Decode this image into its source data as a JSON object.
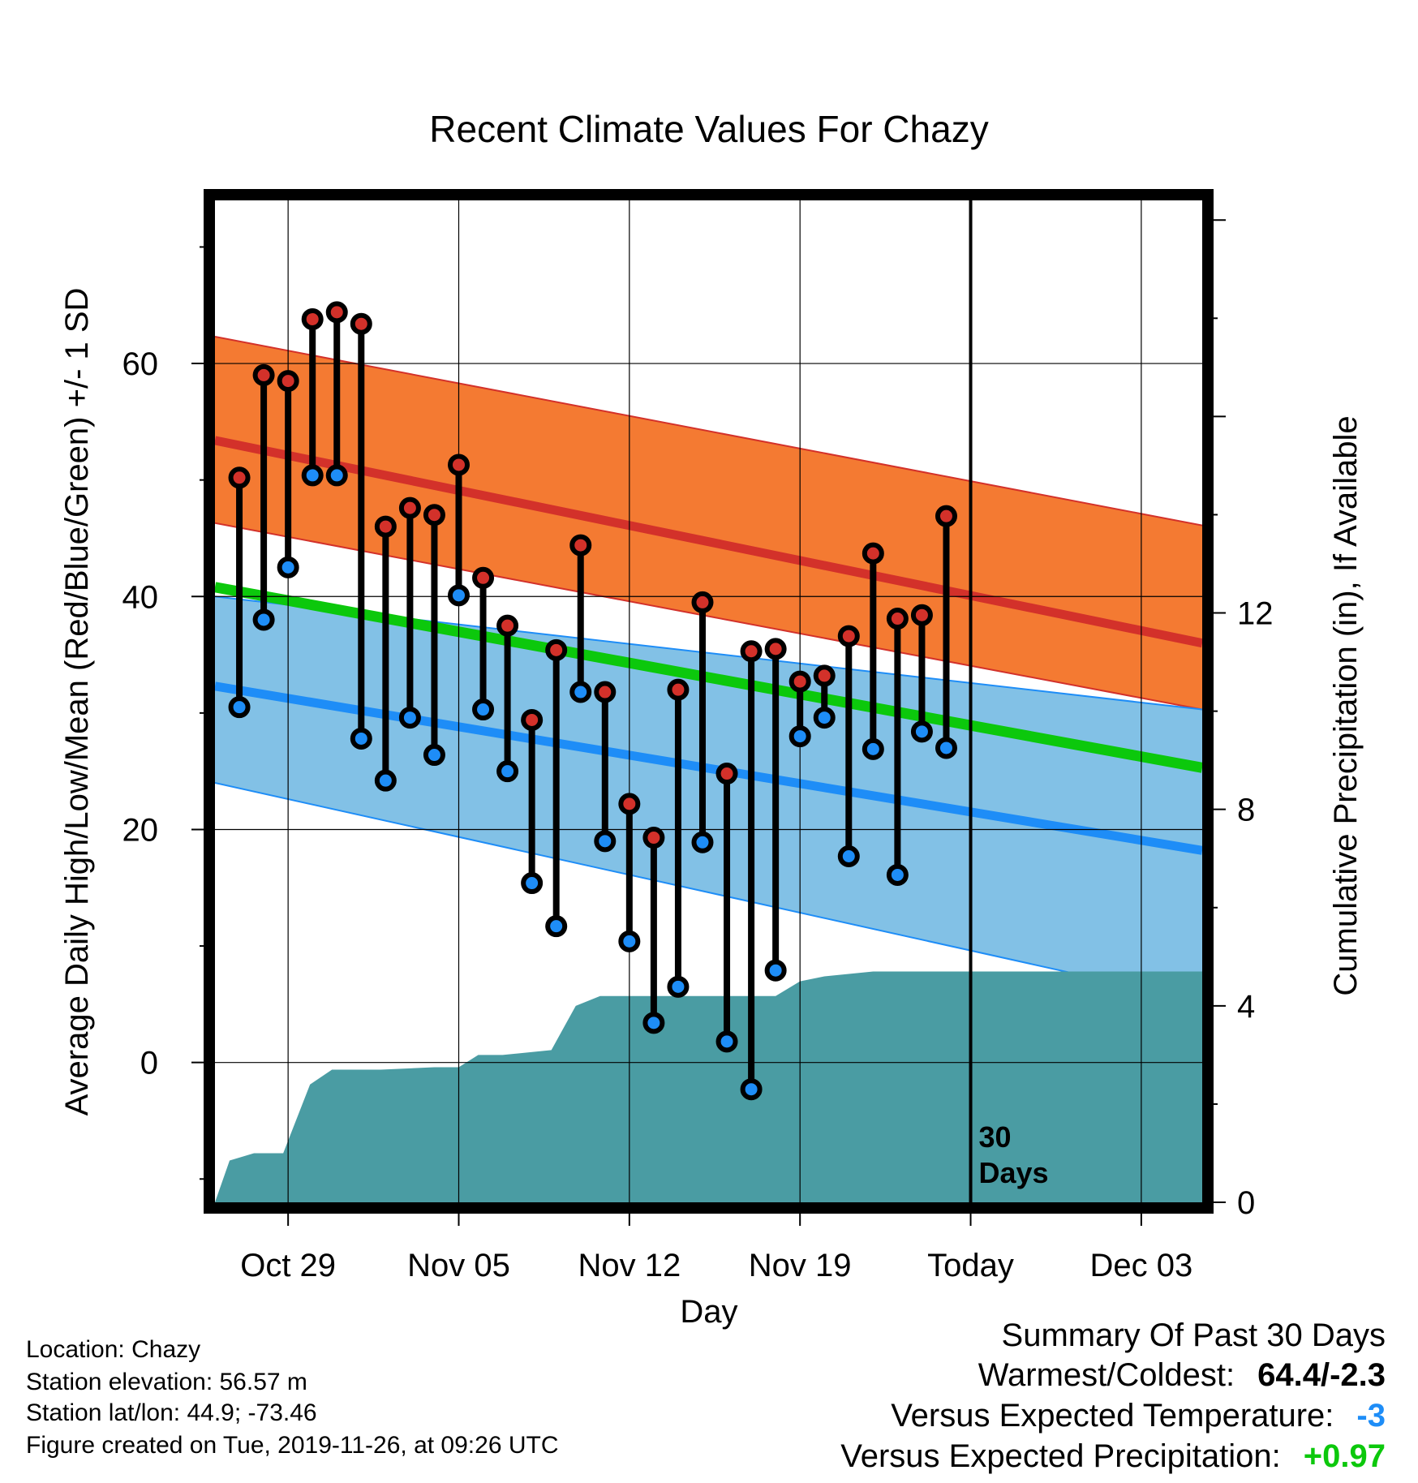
{
  "chart_data": {
    "type": "line",
    "title": "Recent Climate Values For Chazy",
    "xlabel": "Day",
    "ylabel": "Average Daily High/Low/Mean (Red/Blue/Green) +/- 1 SD",
    "y2label": "Cumulative Precipitation (in), If Available",
    "x_tick_labels": [
      "Oct 29",
      "Nov 05",
      "Nov 12",
      "Nov 19",
      "Today",
      "Dec 03"
    ],
    "x_tick_days": [
      3,
      10,
      17,
      24,
      31,
      38
    ],
    "x_range_days": [
      0,
      40.5
    ],
    "ylim": [
      -12,
      74
    ],
    "y_ticks": [
      0,
      20,
      40,
      60
    ],
    "y2lim": [
      0,
      20.4
    ],
    "y2_ticks": [
      0,
      4,
      8,
      12
    ],
    "grid": true,
    "today_day": 31,
    "today_annotation": "30\nDays",
    "daily_obs": {
      "days": [
        1,
        2,
        3,
        4,
        5,
        6,
        7,
        8,
        9,
        10,
        11,
        12,
        13,
        14,
        15,
        16,
        17,
        18,
        19,
        20,
        21,
        22,
        23,
        24,
        25,
        26,
        27,
        28,
        29,
        30
      ],
      "highs": [
        50.2,
        59.0,
        58.5,
        63.8,
        64.4,
        63.4,
        46.0,
        47.6,
        47.0,
        51.3,
        41.6,
        37.5,
        29.4,
        35.4,
        44.4,
        31.8,
        22.2,
        19.3,
        32.0,
        39.5,
        24.8,
        35.3,
        35.5,
        32.7,
        33.2,
        36.6,
        43.7,
        38.1,
        38.4,
        46.9
      ],
      "lows": [
        30.5,
        38.0,
        42.5,
        50.4,
        50.4,
        27.8,
        24.2,
        29.6,
        26.4,
        40.1,
        30.3,
        25.0,
        15.4,
        11.7,
        31.8,
        19.0,
        10.4,
        3.4,
        6.5,
        18.9,
        1.8,
        -2.3,
        7.9,
        28.0,
        29.6,
        17.7,
        26.9,
        16.1,
        28.4,
        27.0
      ]
    },
    "normals": {
      "days": [
        0,
        40.5
      ],
      "high_mean": [
        53.4,
        36.0
      ],
      "high_upper": [
        62.3,
        46.1
      ],
      "high_lower": [
        46.3,
        30.3
      ],
      "low_mean": [
        32.3,
        18.2
      ],
      "low_upper": [
        40.0,
        30.3
      ],
      "low_lower": [
        24.0,
        5.2
      ],
      "daily_mean": [
        40.8,
        25.3
      ]
    },
    "precip_cumulative": {
      "days": [
        0,
        0.6,
        1.6,
        2.8,
        3.9,
        4.8,
        5.8,
        6.8,
        9.0,
        10.0,
        10.8,
        11.8,
        13.8,
        14.8,
        15.8,
        16.5,
        17.2,
        18.0,
        20.0,
        22.0,
        23.0,
        24.0,
        25.0,
        26.0,
        27.0,
        40.5
      ],
      "values": [
        0,
        0.85,
        1.0,
        1.0,
        2.4,
        2.7,
        2.7,
        2.7,
        2.75,
        2.75,
        3.0,
        3.0,
        3.1,
        4.0,
        4.2,
        4.2,
        4.2,
        4.2,
        4.2,
        4.2,
        4.2,
        4.5,
        4.6,
        4.65,
        4.7,
        4.7
      ]
    },
    "colors": {
      "high_band": "#f47a32",
      "high_mean": "#d3312a",
      "low_band": "#82c1e6",
      "low_mean": "#1e8df7",
      "low_band_edge": "#1e8df7",
      "daily_mean": "#0cc80c",
      "overlap_band": "#941a1c",
      "precip": "#4a9ca3",
      "high_marker": "#d3312a",
      "low_marker": "#1e8df7",
      "stem": "#000000"
    }
  },
  "meta": {
    "location": "Location: Chazy",
    "elevation": "Station elevation: 56.57 m",
    "latlon": "Station lat/lon: 44.9; -73.46",
    "created": "Figure created on Tue, 2019-11-26, at 09:26 UTC"
  },
  "summary": {
    "heading": "Summary Of Past 30 Days",
    "warmest_coldest_label": "Warmest/Coldest:",
    "warmest_coldest_value": "64.4/-2.3",
    "temp_label": "Versus Expected Temperature:",
    "temp_value": "-3",
    "temp_color": "#1e8df7",
    "precip_label": "Versus Expected Precipitation:",
    "precip_value": "+0.97",
    "precip_color": "#0cc80c"
  }
}
